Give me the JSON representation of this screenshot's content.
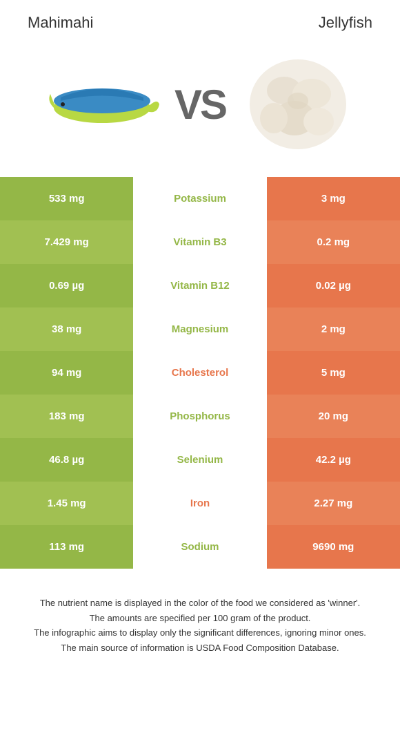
{
  "left": {
    "title": "Mahimahi",
    "bg_colors": [
      "#94b747",
      "#a1c052"
    ]
  },
  "right": {
    "title": "Jellyfish",
    "bg_colors": [
      "#e7764c",
      "#e98258"
    ]
  },
  "vs": "VS",
  "label_colors": {
    "left": "#94b747",
    "right": "#e7764c"
  },
  "rows": [
    {
      "nutrient": "Potassium",
      "left": "533 mg",
      "right": "3 mg",
      "winner": "left"
    },
    {
      "nutrient": "Vitamin B3",
      "left": "7.429 mg",
      "right": "0.2 mg",
      "winner": "left"
    },
    {
      "nutrient": "Vitamin B12",
      "left": "0.69 µg",
      "right": "0.02 µg",
      "winner": "left"
    },
    {
      "nutrient": "Magnesium",
      "left": "38 mg",
      "right": "2 mg",
      "winner": "left"
    },
    {
      "nutrient": "Cholesterol",
      "left": "94 mg",
      "right": "5 mg",
      "winner": "right"
    },
    {
      "nutrient": "Phosphorus",
      "left": "183 mg",
      "right": "20 mg",
      "winner": "left"
    },
    {
      "nutrient": "Selenium",
      "left": "46.8 µg",
      "right": "42.2 µg",
      "winner": "left"
    },
    {
      "nutrient": "Iron",
      "left": "1.45 mg",
      "right": "2.27 mg",
      "winner": "right"
    },
    {
      "nutrient": "Sodium",
      "left": "113 mg",
      "right": "9690 mg",
      "winner": "left"
    }
  ],
  "footer": [
    "The nutrient name is displayed in the color of the food we considered as 'winner'.",
    "The amounts are specified per 100 gram of the product.",
    "The infographic aims to display only the significant differences, ignoring minor ones.",
    "The main source of information is USDA Food Composition Database."
  ]
}
